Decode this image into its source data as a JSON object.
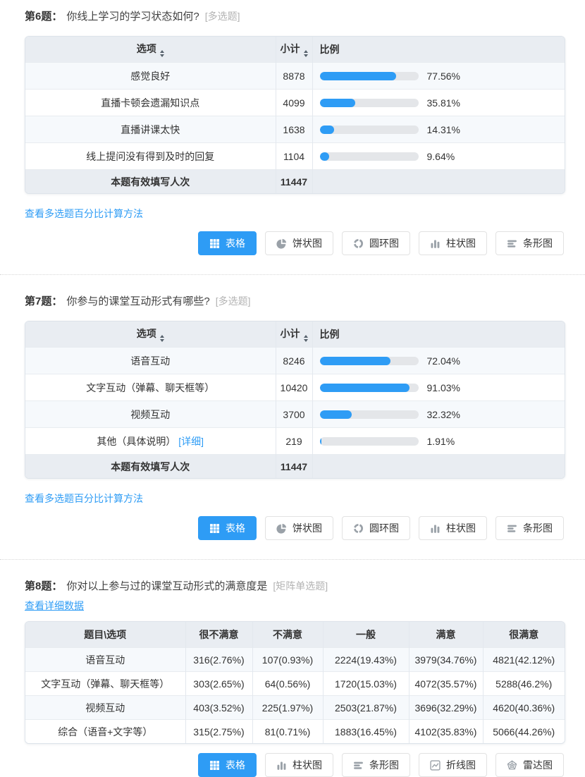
{
  "page": {
    "accent_color": "#2e9cf5",
    "header_bg": "#e9edf2",
    "stripe_bg": "#f6f9fc"
  },
  "sections": [
    {
      "type": "choice",
      "number": "第6题：",
      "text": "你线上学习的学习状态如何?",
      "tag": "[多选题]",
      "table": {
        "col_option": "选项",
        "col_count": "小计",
        "col_ratio": "比例",
        "rows": [
          {
            "option": "感觉良好",
            "count": "8878",
            "percent": "77.56%",
            "value": 77.56
          },
          {
            "option": "直播卡顿会遗漏知识点",
            "count": "4099",
            "percent": "35.81%",
            "value": 35.81
          },
          {
            "option": "直播讲课太快",
            "count": "1638",
            "percent": "14.31%",
            "value": 14.31
          },
          {
            "option": "线上提问没有得到及时的回复",
            "count": "1104",
            "percent": "9.64%",
            "value": 9.64
          }
        ],
        "footer_label": "本题有效填写人次",
        "footer_count": "11447"
      },
      "method_link": "查看多选题百分比计算方法",
      "buttons": [
        {
          "key": "table",
          "icon": "table-icon",
          "label": "表格",
          "active": true
        },
        {
          "key": "pie",
          "icon": "pie-chart-icon",
          "label": "饼状图",
          "active": false
        },
        {
          "key": "donut",
          "icon": "donut-chart-icon",
          "label": "圆环图",
          "active": false
        },
        {
          "key": "column",
          "icon": "column-chart-icon",
          "label": "柱状图",
          "active": false
        },
        {
          "key": "hbar",
          "icon": "bar-chart-icon",
          "label": "条形图",
          "active": false
        }
      ]
    },
    {
      "type": "choice",
      "number": "第7题：",
      "text": "你参与的课堂互动形式有哪些?",
      "tag": "[多选题]",
      "table": {
        "col_option": "选项",
        "col_count": "小计",
        "col_ratio": "比例",
        "rows": [
          {
            "option": "语音互动",
            "count": "8246",
            "percent": "72.04%",
            "value": 72.04
          },
          {
            "option": "文字互动（弹幕、聊天框等）",
            "count": "10420",
            "percent": "91.03%",
            "value": 91.03
          },
          {
            "option": "视频互动",
            "count": "3700",
            "percent": "32.32%",
            "value": 32.32
          },
          {
            "option": "其他（具体说明）",
            "option_link": "[详细]",
            "count": "219",
            "percent": "1.91%",
            "value": 1.91
          }
        ],
        "footer_label": "本题有效填写人次",
        "footer_count": "11447"
      },
      "method_link": "查看多选题百分比计算方法",
      "buttons": [
        {
          "key": "table",
          "icon": "table-icon",
          "label": "表格",
          "active": true
        },
        {
          "key": "pie",
          "icon": "pie-chart-icon",
          "label": "饼状图",
          "active": false
        },
        {
          "key": "donut",
          "icon": "donut-chart-icon",
          "label": "圆环图",
          "active": false
        },
        {
          "key": "column",
          "icon": "column-chart-icon",
          "label": "柱状图",
          "active": false
        },
        {
          "key": "hbar",
          "icon": "bar-chart-icon",
          "label": "条形图",
          "active": false
        }
      ]
    },
    {
      "type": "matrix",
      "number": "第8题：",
      "text": "你对以上参与过的课堂互动形式的满意度是",
      "tag": "[矩阵单选题]",
      "detail_link": "查看详细数据",
      "matrix": {
        "headers": [
          "题目\\选项",
          "很不满意",
          "不满意",
          "一般",
          "满意",
          "很满意"
        ],
        "rows": [
          {
            "label": "语音互动",
            "cells": [
              "316(2.76%)",
              "107(0.93%)",
              "2224(19.43%)",
              "3979(34.76%)",
              "4821(42.12%)"
            ]
          },
          {
            "label": "文字互动（弹幕、聊天框等）",
            "cells": [
              "303(2.65%)",
              "64(0.56%)",
              "1720(15.03%)",
              "4072(35.57%)",
              "5288(46.2%)"
            ]
          },
          {
            "label": "视频互动",
            "cells": [
              "403(3.52%)",
              "225(1.97%)",
              "2503(21.87%)",
              "3696(32.29%)",
              "4620(40.36%)"
            ]
          },
          {
            "label": "综合（语音+文字等）",
            "cells": [
              "315(2.75%)",
              "81(0.71%)",
              "1883(16.45%)",
              "4102(35.83%)",
              "5066(44.26%)"
            ]
          }
        ]
      },
      "buttons": [
        {
          "key": "table",
          "icon": "table-icon",
          "label": "表格",
          "active": true
        },
        {
          "key": "column",
          "icon": "column-chart-icon",
          "label": "柱状图",
          "active": false
        },
        {
          "key": "hbar",
          "icon": "bar-chart-icon",
          "label": "条形图",
          "active": false
        },
        {
          "key": "line",
          "icon": "line-chart-icon",
          "label": "折线图",
          "active": false
        },
        {
          "key": "radar",
          "icon": "radar-chart-icon",
          "label": "雷达图",
          "active": false
        }
      ]
    }
  ]
}
